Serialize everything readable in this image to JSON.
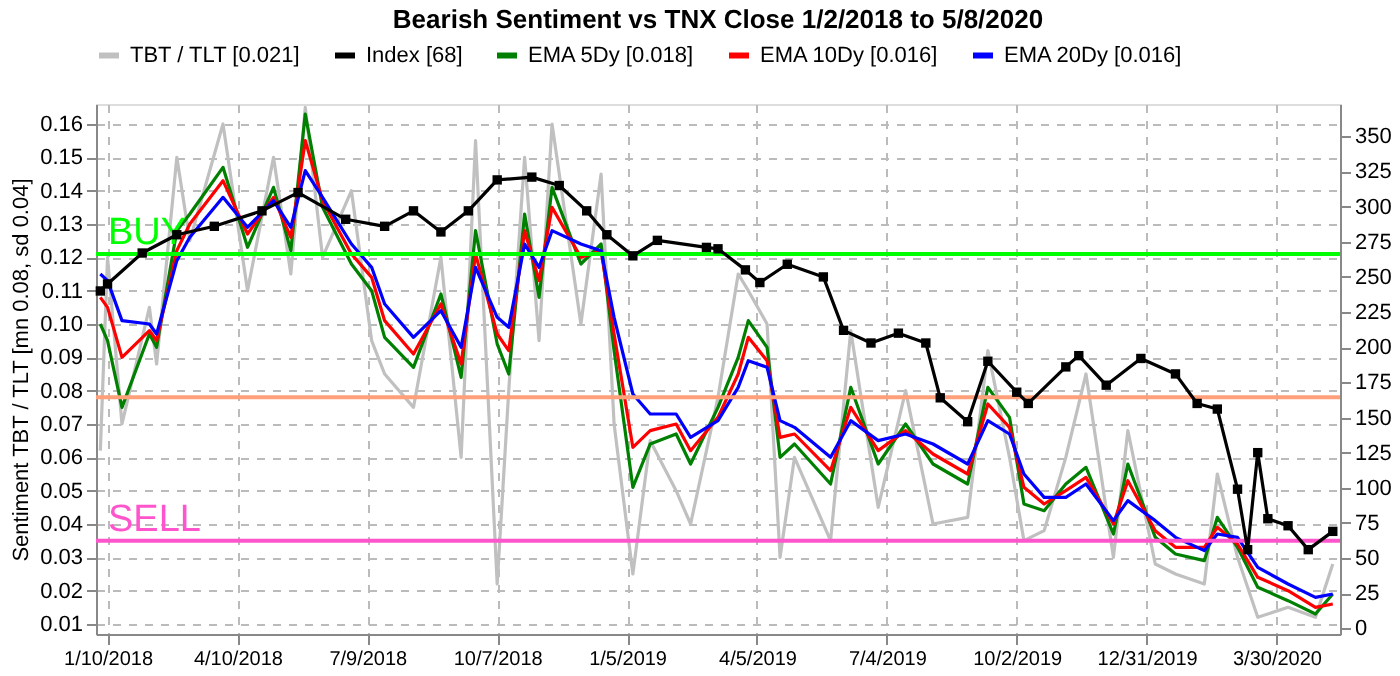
{
  "chart_data": {
    "type": "line",
    "title": "Bearish Sentiment vs TNX Close 1/2/2018 to 5/8/2020",
    "ylabel": "Sentiment TBT / TLT [mn 0.08, sd 0.04]",
    "x": [
      "2018-01-05",
      "2018-01-10",
      "2018-01-20",
      "2018-02-08",
      "2018-02-13",
      "2018-02-27",
      "2018-03-08",
      "2018-03-31",
      "2018-04-17",
      "2018-05-05",
      "2018-05-17",
      "2018-05-27",
      "2018-06-08",
      "2018-06-28",
      "2018-07-12",
      "2018-07-21",
      "2018-08-10",
      "2018-08-29",
      "2018-09-12",
      "2018-09-22",
      "2018-10-07",
      "2018-10-15",
      "2018-10-26",
      "2018-11-05",
      "2018-11-14",
      "2018-12-04",
      "2018-12-18",
      "2018-12-27",
      "2019-01-09",
      "2019-01-21",
      "2019-02-08",
      "2019-02-18",
      "2019-03-09",
      "2019-03-23",
      "2019-03-30",
      "2019-04-12",
      "2019-04-21",
      "2019-05-01",
      "2019-05-26",
      "2019-06-09",
      "2019-06-28",
      "2019-07-17",
      "2019-08-05",
      "2019-08-29",
      "2019-09-12",
      "2019-09-27",
      "2019-10-07",
      "2019-10-21",
      "2019-11-05",
      "2019-11-19",
      "2019-12-08",
      "2019-12-18",
      "2020-01-06",
      "2020-01-20",
      "2020-02-09",
      "2020-02-18",
      "2020-03-03",
      "2020-03-17",
      "2020-04-07",
      "2020-04-26",
      "2020-05-08"
    ],
    "series": [
      {
        "name": "TBT / TLT [0.021]",
        "color": "#c0c0c0",
        "values": [
          0.062,
          0.12,
          0.07,
          0.105,
          0.088,
          0.15,
          0.125,
          0.16,
          0.11,
          0.15,
          0.115,
          0.165,
          0.12,
          0.14,
          0.095,
          0.085,
          0.075,
          0.12,
          0.06,
          0.155,
          0.022,
          0.08,
          0.15,
          0.095,
          0.16,
          0.1,
          0.145,
          0.07,
          0.025,
          0.065,
          0.05,
          0.04,
          0.078,
          0.115,
          0.11,
          0.1,
          0.03,
          0.06,
          0.035,
          0.098,
          0.045,
          0.08,
          0.04,
          0.042,
          0.092,
          0.06,
          0.035,
          0.038,
          0.06,
          0.085,
          0.03,
          0.068,
          0.028,
          0.025,
          0.022,
          0.055,
          0.03,
          0.012,
          0.015,
          0.012,
          0.028
        ]
      },
      {
        "name": "Index [68]",
        "color": "#000000",
        "axis": "y2",
        "marker": "square",
        "x": [
          "2018-01-05",
          "2018-01-10",
          "2018-02-03",
          "2018-02-27",
          "2018-03-25",
          "2018-04-27",
          "2018-05-22",
          "2018-06-24",
          "2018-07-21",
          "2018-08-10",
          "2018-08-29",
          "2018-09-17",
          "2018-10-07",
          "2018-10-31",
          "2018-11-19",
          "2018-12-08",
          "2018-12-22",
          "2019-01-09",
          "2019-01-26",
          "2019-03-01",
          "2019-03-09",
          "2019-03-28",
          "2019-04-07",
          "2019-04-26",
          "2019-05-21",
          "2019-06-04",
          "2019-06-23",
          "2019-07-12",
          "2019-07-31",
          "2019-08-10",
          "2019-08-29",
          "2019-09-12",
          "2019-10-02",
          "2019-10-10",
          "2019-11-05",
          "2019-11-14",
          "2019-12-03",
          "2019-12-27",
          "2020-01-20",
          "2020-02-04",
          "2020-02-18",
          "2020-03-03",
          "2020-03-10",
          "2020-03-17",
          "2020-03-24",
          "2020-04-07",
          "2020-04-21",
          "2020-05-08"
        ],
        "values": [
          240,
          245,
          267,
          280,
          286,
          297,
          310,
          291,
          286,
          297,
          282,
          297,
          319,
          321,
          315,
          297,
          280,
          265,
          276,
          271,
          270,
          255,
          246,
          259,
          250,
          212,
          203,
          210,
          203,
          164,
          147,
          190,
          168,
          160,
          186,
          194,
          173,
          192,
          181,
          160,
          156,
          99,
          56,
          125,
          78,
          73,
          56,
          69
        ]
      },
      {
        "name": "EMA 5Dy [0.018]",
        "color": "#008000",
        "values": [
          0.1,
          0.095,
          0.075,
          0.097,
          0.093,
          0.128,
          0.133,
          0.147,
          0.123,
          0.141,
          0.122,
          0.163,
          0.135,
          0.118,
          0.11,
          0.096,
          0.087,
          0.109,
          0.084,
          0.128,
          0.094,
          0.085,
          0.133,
          0.108,
          0.141,
          0.118,
          0.124,
          0.092,
          0.051,
          0.064,
          0.067,
          0.058,
          0.075,
          0.09,
          0.101,
          0.093,
          0.06,
          0.064,
          0.052,
          0.081,
          0.058,
          0.07,
          0.058,
          0.052,
          0.081,
          0.072,
          0.046,
          0.044,
          0.052,
          0.057,
          0.037,
          0.058,
          0.036,
          0.031,
          0.029,
          0.042,
          0.033,
          0.021,
          0.017,
          0.013,
          0.019
        ]
      },
      {
        "name": "EMA 10Dy [0.016]",
        "color": "#ff0000",
        "values": [
          0.108,
          0.105,
          0.09,
          0.098,
          0.095,
          0.122,
          0.13,
          0.143,
          0.127,
          0.138,
          0.126,
          0.155,
          0.137,
          0.121,
          0.114,
          0.101,
          0.091,
          0.106,
          0.088,
          0.121,
          0.097,
          0.092,
          0.128,
          0.113,
          0.135,
          0.12,
          0.122,
          0.097,
          0.063,
          0.068,
          0.07,
          0.062,
          0.072,
          0.085,
          0.096,
          0.089,
          0.066,
          0.067,
          0.056,
          0.075,
          0.062,
          0.068,
          0.061,
          0.055,
          0.076,
          0.069,
          0.051,
          0.046,
          0.05,
          0.054,
          0.04,
          0.053,
          0.038,
          0.033,
          0.033,
          0.039,
          0.034,
          0.024,
          0.02,
          0.015,
          0.016
        ]
      },
      {
        "name": "EMA 20Dy [0.016]",
        "color": "#0000ff",
        "values": [
          0.115,
          0.113,
          0.101,
          0.1,
          0.097,
          0.119,
          0.126,
          0.138,
          0.129,
          0.137,
          0.129,
          0.146,
          0.138,
          0.124,
          0.117,
          0.106,
          0.096,
          0.104,
          0.093,
          0.117,
          0.102,
          0.099,
          0.124,
          0.117,
          0.128,
          0.124,
          0.122,
          0.102,
          0.079,
          0.073,
          0.073,
          0.066,
          0.071,
          0.081,
          0.089,
          0.087,
          0.071,
          0.069,
          0.06,
          0.071,
          0.065,
          0.067,
          0.064,
          0.058,
          0.071,
          0.067,
          0.055,
          0.048,
          0.048,
          0.052,
          0.041,
          0.047,
          0.041,
          0.036,
          0.032,
          0.037,
          0.036,
          0.027,
          0.022,
          0.018,
          0.019
        ]
      }
    ],
    "ref_lines": [
      {
        "axis": "y",
        "value": 0.121,
        "label": "BUY",
        "color": "#00ff00"
      },
      {
        "axis": "y",
        "value": 0.078,
        "label": null,
        "color": "#ffa07a"
      },
      {
        "axis": "y",
        "value": 0.035,
        "label": "SELL",
        "color": "#ff55cc"
      }
    ],
    "xlim": [
      "2018-01-02",
      "2020-05-13"
    ],
    "xticks": [
      {
        "value": "2018-01-10",
        "label": "1/10/2018"
      },
      {
        "value": "2018-04-10",
        "label": "4/10/2018"
      },
      {
        "value": "2018-07-09",
        "label": "7/9/2018"
      },
      {
        "value": "2018-10-07",
        "label": "10/7/2018"
      },
      {
        "value": "2019-01-05",
        "label": "1/5/2019"
      },
      {
        "value": "2019-04-05",
        "label": "4/5/2019"
      },
      {
        "value": "2019-07-04",
        "label": "7/4/2019"
      },
      {
        "value": "2019-10-02",
        "label": "10/2/2019"
      },
      {
        "value": "2019-12-31",
        "label": "12/31/2019"
      },
      {
        "value": "2020-03-30",
        "label": "3/30/2020"
      }
    ],
    "ylim": [
      0.007,
      0.166
    ],
    "yticks": [
      {
        "value": 0.01,
        "label": "0.01"
      },
      {
        "value": 0.02,
        "label": "0.02"
      },
      {
        "value": 0.03,
        "label": "0.03"
      },
      {
        "value": 0.04,
        "label": "0.04"
      },
      {
        "value": 0.05,
        "label": "0.05"
      },
      {
        "value": 0.06,
        "label": "0.06"
      },
      {
        "value": 0.07,
        "label": "0.07"
      },
      {
        "value": 0.08,
        "label": "0.08"
      },
      {
        "value": 0.09,
        "label": "0.09"
      },
      {
        "value": 0.1,
        "label": "0.10"
      },
      {
        "value": 0.11,
        "label": "0.11"
      },
      {
        "value": 0.12,
        "label": "0.12"
      },
      {
        "value": 0.13,
        "label": "0.13"
      },
      {
        "value": 0.14,
        "label": "0.14"
      },
      {
        "value": 0.15,
        "label": "0.15"
      },
      {
        "value": 0.16,
        "label": "0.16"
      }
    ],
    "y2lim": [
      -4,
      373
    ],
    "y2ticks": [
      0,
      25,
      50,
      75,
      100,
      125,
      150,
      175,
      200,
      225,
      250,
      275,
      300,
      325,
      350
    ],
    "grid": true,
    "legend": "top",
    "line_style": "solid"
  }
}
